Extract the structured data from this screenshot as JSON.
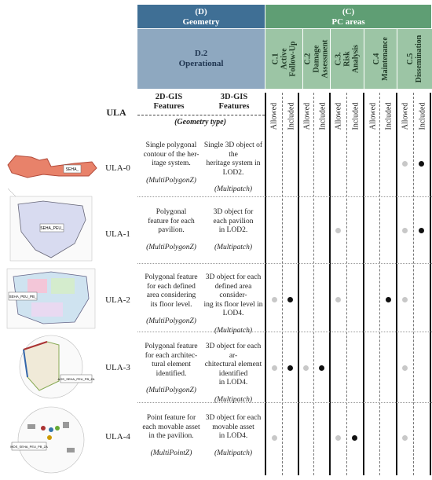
{
  "header": {
    "d_code": "(D)",
    "d_title": "Geometry",
    "c_code": "(C)",
    "c_title": "PC areas",
    "d2_code": "D.2",
    "d2_title": "Operational"
  },
  "pc_areas": [
    {
      "code": "C.1",
      "line2": "Active",
      "line3": "Follow-Up"
    },
    {
      "code": "C.2",
      "line2": "Damage",
      "line3": "Assessment"
    },
    {
      "code": "C.3.",
      "line2": "Risk",
      "line3": "Analysis"
    },
    {
      "code": "C.4",
      "line2": "Maintenance",
      "line3": ""
    },
    {
      "code": "C.5",
      "line2": "Dissemination",
      "line3": ""
    }
  ],
  "sub_headers": {
    "allowed": "Allowed",
    "included": "Included"
  },
  "columns": {
    "ula": "ULA",
    "gis2d_l1": "2D-GIS",
    "gis2d_l2": "Features",
    "gis3d_l1": "3D-GIS",
    "gis3d_l2": "Features",
    "geometry_type": "(Geometry type)"
  },
  "rows": [
    {
      "ula": "ULA-0",
      "d2": [
        "Single polygonal",
        "contour of the her-",
        "itage system."
      ],
      "d2_type": "(MultiPolygonZ)",
      "d3": [
        "Single 3D object of the",
        "heritage system in",
        "LOD2."
      ],
      "d3_type": "(Multipatch)",
      "thumb_label": "SEHA_"
    },
    {
      "ula": "ULA-1",
      "d2": [
        "Polygonal",
        "feature for each",
        "pavilion."
      ],
      "d2_type": "(MultiPolygonZ)",
      "d3": [
        "3D object for",
        "each pavilion",
        "in LOD2."
      ],
      "d3_type": "(Multipatch)",
      "thumb_label": "SEHA_PEU_"
    },
    {
      "ula": "ULA-2",
      "d2": [
        "Polygonal feature",
        "for each defined",
        "area considering",
        "its floor level."
      ],
      "d2_type": "(MultiPolygonZ)",
      "d3": [
        "3D object for each",
        "defined area consider-",
        "ing its floor level in",
        "LOD4."
      ],
      "d3_type": "(Multipatch)",
      "thumb_label": "SEHA_PEU_PB_"
    },
    {
      "ula": "ULA-3",
      "d2": [
        "Polygonal feature",
        "for each architec-",
        "tural element",
        "identified."
      ],
      "d2_type": "(MultiPolygonZ)",
      "d3": [
        "3D object for each ar-",
        "chitectural element",
        "identified",
        "in LOD4."
      ],
      "d3_type": "(Multipatch)",
      "thumb_label": "AOS_SEHA_PEU_PB_ZA"
    },
    {
      "ula": "ULA-4",
      "d2": [
        "Point feature for",
        "each movable asset",
        "in the pavilion."
      ],
      "d2_type": "(MultiPointZ)",
      "d3": [
        "3D object for each",
        "movable asset",
        "in LOD4."
      ],
      "d3_type": "(Multipatch)",
      "thumb_label": "MOS_SEHA_PEU_PB_ZA"
    }
  ],
  "matrix": [
    [
      0,
      0,
      0,
      0,
      0,
      0,
      0,
      0,
      1,
      2
    ],
    [
      0,
      0,
      0,
      0,
      1,
      0,
      0,
      0,
      1,
      2
    ],
    [
      1,
      2,
      0,
      0,
      1,
      0,
      0,
      2,
      1,
      0
    ],
    [
      1,
      2,
      1,
      2,
      0,
      0,
      0,
      0,
      1,
      0
    ],
    [
      1,
      0,
      0,
      0,
      1,
      2,
      0,
      0,
      1,
      0
    ]
  ],
  "colors": {
    "header_d": "#3f6f95",
    "header_c": "#5f9e74",
    "allowed_dot": "#c8c8c8",
    "included_dot": "#111111"
  }
}
